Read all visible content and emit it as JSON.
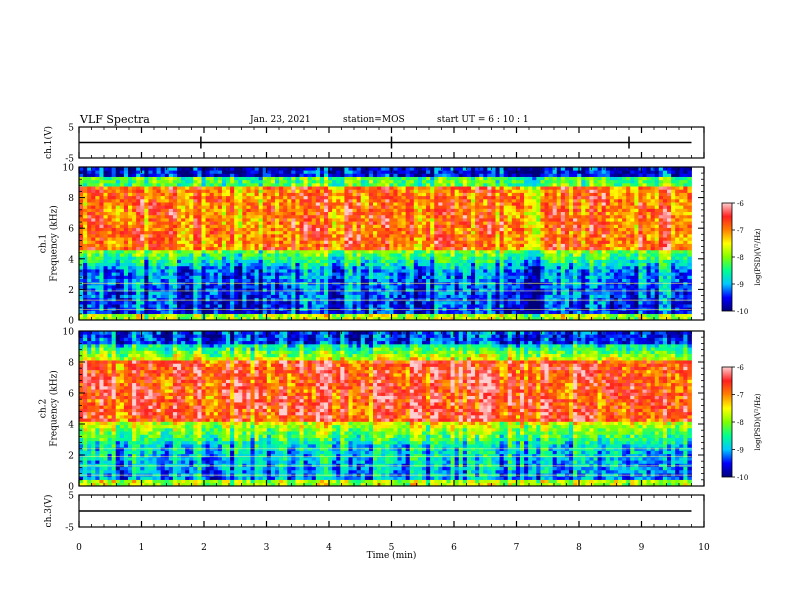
{
  "header": {
    "title": "VLF Spectra",
    "date": "Jan. 23, 2021",
    "station": "station=MOS",
    "start_ut": "start UT = 6 : 10 : 1"
  },
  "chart_data": [
    {
      "type": "line",
      "panel": "ch1-voltage",
      "ylabel": "ch.1(V)",
      "ylim": [
        -5,
        5
      ],
      "y_ticks": [
        "5",
        "-5"
      ],
      "series": [
        {
          "x": [
            0,
            9.8
          ],
          "y": [
            0,
            0
          ]
        }
      ]
    },
    {
      "type": "heatmap",
      "panel": "ch1-spectrogram",
      "ylabel": "ch.1\nFrequency (kHz)",
      "xlim": [
        0,
        9.8
      ],
      "ylim": [
        0,
        10
      ],
      "y_ticks": [
        "0",
        "2",
        "4",
        "6",
        "8",
        "10"
      ],
      "colorbar": {
        "label": "log(PSD)(V²/Hz)",
        "range": [
          -10,
          -6
        ],
        "ticks": [
          "-6",
          "-7",
          "-8",
          "-9",
          "-10"
        ]
      }
    },
    {
      "type": "heatmap",
      "panel": "ch2-spectrogram",
      "ylabel": "ch.2\nFrequency (kHz)",
      "xlim": [
        0,
        9.8
      ],
      "ylim": [
        0,
        10
      ],
      "y_ticks": [
        "0",
        "2",
        "4",
        "6",
        "8",
        "10"
      ],
      "colorbar": {
        "label": "log(PSD)(V²/Hz)",
        "range": [
          -10,
          -6
        ],
        "ticks": [
          "-6",
          "-7",
          "-8",
          "-9",
          "-10"
        ]
      }
    },
    {
      "type": "line",
      "panel": "ch3-voltage",
      "ylabel": "ch.3(V)",
      "ylim": [
        -5,
        5
      ],
      "y_ticks": [
        "5",
        "-5"
      ],
      "series": [
        {
          "x": [
            0,
            9.8
          ],
          "y": [
            0,
            0
          ]
        }
      ]
    }
  ],
  "xaxis": {
    "label": "Time (min)",
    "range": [
      0,
      10
    ],
    "ticks": [
      "0",
      "1",
      "2",
      "3",
      "4",
      "5",
      "6",
      "7",
      "8",
      "9",
      "10"
    ]
  },
  "colormap": [
    "#00007a",
    "#0000ff",
    "#00c8ff",
    "#00ff90",
    "#80ff00",
    "#ffff00",
    "#ff8000",
    "#ff2020",
    "#ffd0d0"
  ]
}
